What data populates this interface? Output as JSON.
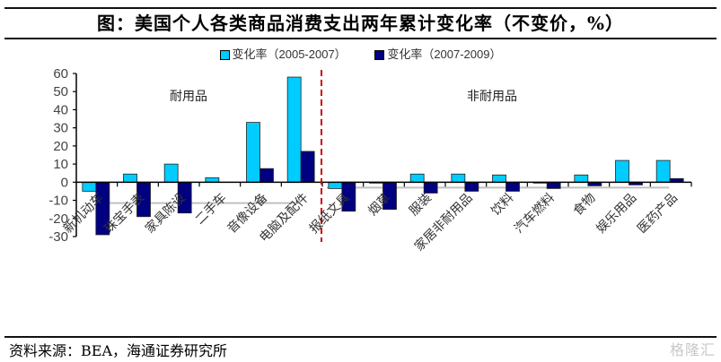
{
  "title": "图：美国个人各类商品消费支出两年累计变化率（不变价，%）",
  "source": "资料来源：BEA，海通证券研究所",
  "watermark": "格隆汇",
  "colors": {
    "series1": "#00ccff",
    "series2": "#000080",
    "divider": "#cc0000",
    "refline": "#c0c0c0"
  },
  "chart_data": {
    "type": "bar",
    "title": "美国个人各类商品消费支出两年累计变化率（不变价，%）",
    "xlabel": "",
    "ylabel": "",
    "ylim": [
      -30,
      60
    ],
    "yticks": [
      60,
      50,
      40,
      30,
      20,
      10,
      0,
      -10,
      -20,
      -30
    ],
    "grid": false,
    "legend_position": "top-center",
    "categories": [
      "新机动车",
      "珠宝手表",
      "家具陈设",
      "二手车",
      "音像设备",
      "电脑及配件",
      "报纸文具",
      "烟草",
      "服装",
      "家居非耐用品",
      "饮料",
      "汽车燃料",
      "食物",
      "娱乐用品",
      "医药产品"
    ],
    "series": [
      {
        "name": "变化率（2005-2007）",
        "values": [
          -5,
          4.5,
          10,
          2.5,
          33,
          58,
          -3.5,
          -0.5,
          4.5,
          4.5,
          4,
          -0.5,
          4,
          12,
          12
        ]
      },
      {
        "name": "变化率（2007-2009）",
        "values": [
          -29,
          -19,
          -17,
          0,
          7.5,
          17,
          -16,
          -15,
          -6,
          -5,
          -5,
          -3.5,
          -2,
          -1.5,
          2
        ]
      }
    ],
    "annotations": [
      {
        "text": "耐用品",
        "group": "durable",
        "categories_range": [
          0,
          5
        ]
      },
      {
        "text": "非耐用品",
        "group": "nondurable",
        "categories_range": [
          6,
          14
        ]
      }
    ],
    "divider_between": [
      "电脑及配件",
      "报纸文具"
    ],
    "reference_lines": [
      {
        "group": "durable",
        "value": -11.5
      },
      {
        "group": "nondurable",
        "value": -3
      }
    ]
  }
}
